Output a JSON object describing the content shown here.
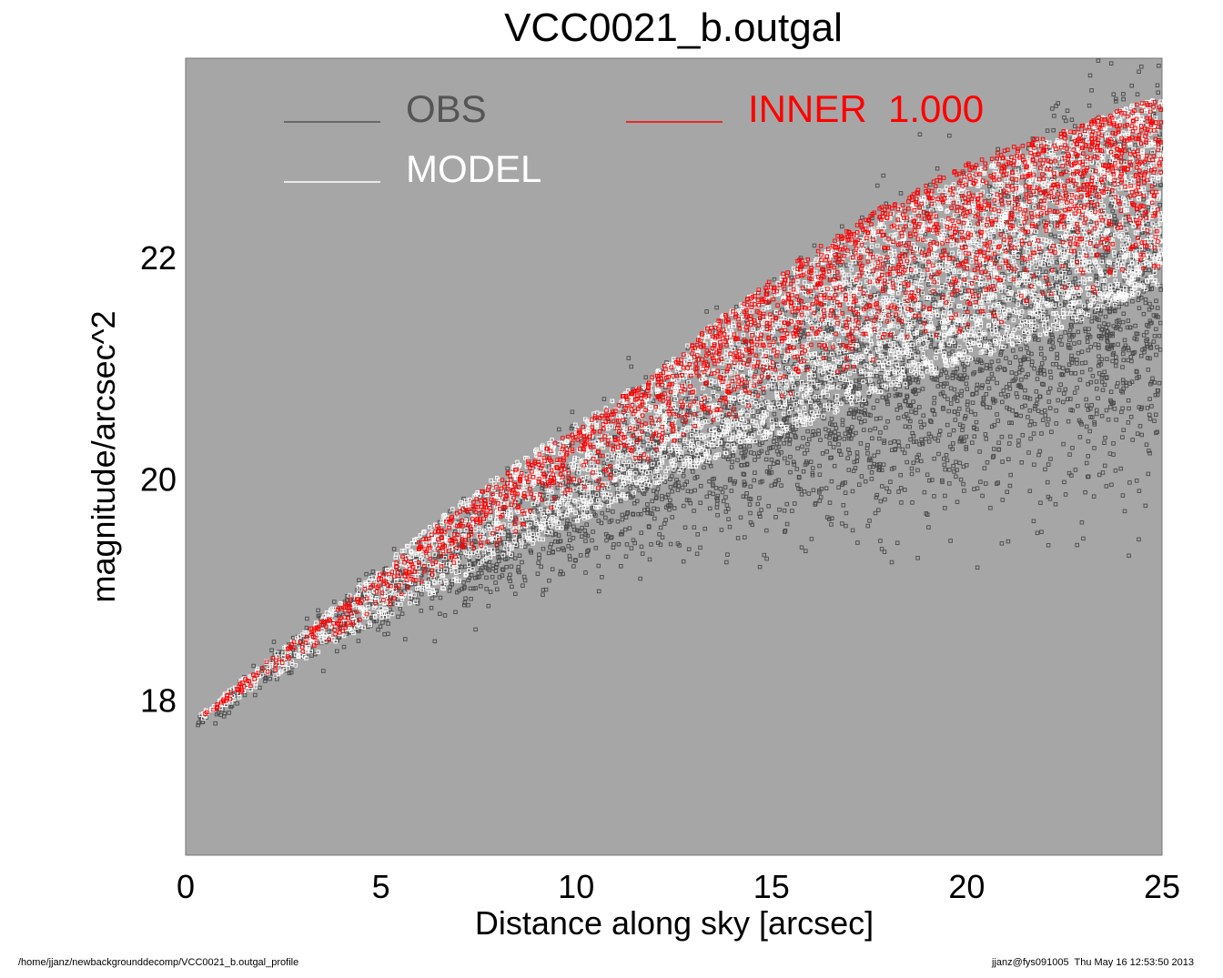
{
  "chart_data": {
    "type": "scatter",
    "title": "VCC0021_b.outgal",
    "xlabel": "Distance along sky [arcsec]",
    "ylabel": "magnitude/arcsec^2",
    "xlim": [
      0,
      25
    ],
    "ylim": [
      23.8,
      16.6
    ],
    "y_inverted": true,
    "x_ticks": [
      0,
      5,
      10,
      15,
      20,
      25
    ],
    "x_tick_labels": [
      "0",
      "5",
      "10",
      "15",
      "20",
      "25"
    ],
    "y_ticks": [
      18,
      20,
      22
    ],
    "y_tick_labels": [
      "18",
      "20",
      "22"
    ],
    "grid": false,
    "plot_background": "#a6a6a6",
    "legend": {
      "placement": "top",
      "entries": [
        {
          "label": "OBS",
          "color": "#555555"
        },
        {
          "label": "MODEL",
          "color": "#ffffff"
        },
        {
          "label": "INNER  1.000",
          "color": "#ff0000"
        }
      ]
    },
    "series": [
      {
        "name": "OBS",
        "color": "#4a4a4a",
        "marker": "hollow-square",
        "trend": {
          "x": [
            0.3,
            1,
            2,
            4,
            6,
            8,
            10,
            12,
            14,
            16,
            18,
            20,
            22,
            24,
            25
          ],
          "y_center": [
            17.8,
            17.95,
            18.25,
            18.75,
            19.1,
            19.4,
            19.8,
            20.15,
            20.45,
            20.75,
            21.0,
            21.25,
            21.55,
            21.8,
            21.95
          ],
          "spread": [
            0.05,
            0.1,
            0.15,
            0.25,
            0.35,
            0.45,
            0.6,
            0.75,
            0.9,
            1.05,
            1.2,
            1.3,
            1.45,
            1.6,
            1.65
          ]
        }
      },
      {
        "name": "MODEL",
        "color": "#ffffff",
        "marker": "hollow-square",
        "trend": {
          "x": [
            0.3,
            2,
            4,
            6,
            8,
            10,
            12,
            14,
            16,
            18,
            20,
            22,
            24,
            25
          ],
          "y_top": [
            17.8,
            18.15,
            18.55,
            18.9,
            19.25,
            19.6,
            19.95,
            20.25,
            20.5,
            20.8,
            21.05,
            21.3,
            21.6,
            21.75
          ],
          "y_bottom": [
            17.85,
            18.35,
            18.9,
            19.5,
            20.05,
            20.5,
            20.95,
            21.55,
            22.0,
            22.4,
            22.75,
            23.05,
            23.35,
            23.45
          ]
        }
      },
      {
        "name": "INNER  1.000",
        "color": "#ff0000",
        "marker": "hollow-square",
        "trend": {
          "x": [
            0.5,
            2,
            4,
            6,
            8,
            10,
            12,
            14,
            16,
            18,
            20,
            22,
            24,
            25
          ],
          "y_top": [
            17.85,
            18.2,
            18.6,
            19.0,
            19.4,
            19.8,
            20.2,
            20.5,
            20.8,
            21.05,
            21.3,
            21.55,
            21.75,
            21.85
          ],
          "y_bottom": [
            17.88,
            18.35,
            18.85,
            19.45,
            20.0,
            20.45,
            20.95,
            21.55,
            22.05,
            22.5,
            22.85,
            23.1,
            23.35,
            23.45
          ]
        }
      }
    ]
  },
  "footer": {
    "left": "/home/jjanz/newbackgrounddecomp/VCC0021_b.outgal_profile",
    "right": "jjanz@fys091005  Thu May 16 12:53:50 2013"
  }
}
